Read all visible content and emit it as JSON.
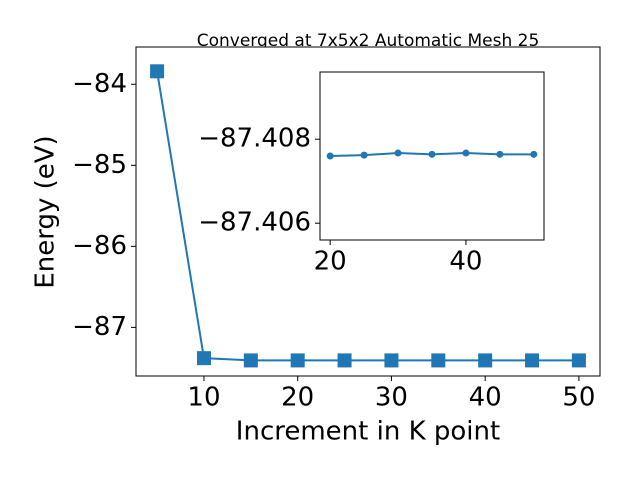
{
  "chart_data": [
    {
      "type": "line",
      "title": "Converged at 7x5x2 Automatic Mesh 25",
      "xlabel": "Increment in K point",
      "ylabel": "Energy (eV)",
      "x": [
        5,
        10,
        15,
        20,
        25,
        30,
        35,
        40,
        45,
        50
      ],
      "series": [
        {
          "color": "#1f77b4",
          "marker": "square",
          "values": [
            -83.84,
            -87.38,
            -87.4076,
            -87.4076,
            -87.4076,
            -87.4077,
            -87.4076,
            -87.4077,
            -87.4076,
            -87.4076
          ]
        }
      ],
      "xlim": [
        2.75,
        52.25
      ],
      "ylim": [
        -87.6,
        -83.54
      ],
      "xticks": [
        10,
        20,
        30,
        40,
        50
      ],
      "yticks": [
        {
          "value": -84,
          "label": "−84"
        },
        {
          "value": -85,
          "label": "−85"
        },
        {
          "value": -86,
          "label": "−86"
        },
        {
          "value": -87,
          "label": "−87"
        }
      ]
    },
    {
      "type": "line",
      "x": [
        20,
        25,
        30,
        35,
        40,
        45,
        50
      ],
      "series": [
        {
          "color": "#1f77b4",
          "marker": "circle",
          "values": [
            -87.4076,
            -87.40762,
            -87.40767,
            -87.40764,
            -87.40767,
            -87.40764,
            -87.40764
          ]
        }
      ],
      "xlim": [
        18.5,
        51.5
      ],
      "ylim": [
        -87.4056,
        -87.4096
      ],
      "xticks": [
        20,
        40
      ],
      "yticks": [
        {
          "value": -87.408,
          "label": "−87.408"
        },
        {
          "value": -87.406,
          "label": "−87.406"
        }
      ]
    }
  ]
}
